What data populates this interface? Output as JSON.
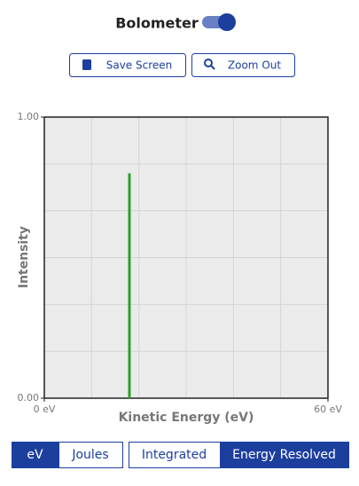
{
  "header": {
    "toggle_label": "Bolometer",
    "toggle_on": true
  },
  "buttons": [
    "Save Screen",
    "Zoom Out"
  ],
  "chart_data": {
    "type": "stem",
    "x_label": "Kinetic Energy (eV)",
    "y_label": "Intensity",
    "xlim": [
      0,
      60
    ],
    "ylim": [
      0,
      1
    ],
    "xticks": [
      {
        "value": 0,
        "label": "0 eV"
      },
      {
        "value": 60,
        "label": "60 eV"
      }
    ],
    "yticks": [
      {
        "value": 0,
        "label": "0.00"
      },
      {
        "value": 1,
        "label": "1.00"
      }
    ],
    "grid": true,
    "grid_divisions": 6,
    "x": [
      18
    ],
    "values": [
      0.8
    ],
    "color": "#2ca02c"
  },
  "units": {
    "options": [
      "eV",
      "Joules"
    ],
    "selected": 0
  },
  "mode": {
    "options": [
      "Integrated",
      "Energy Resolved"
    ],
    "selected": 1
  }
}
